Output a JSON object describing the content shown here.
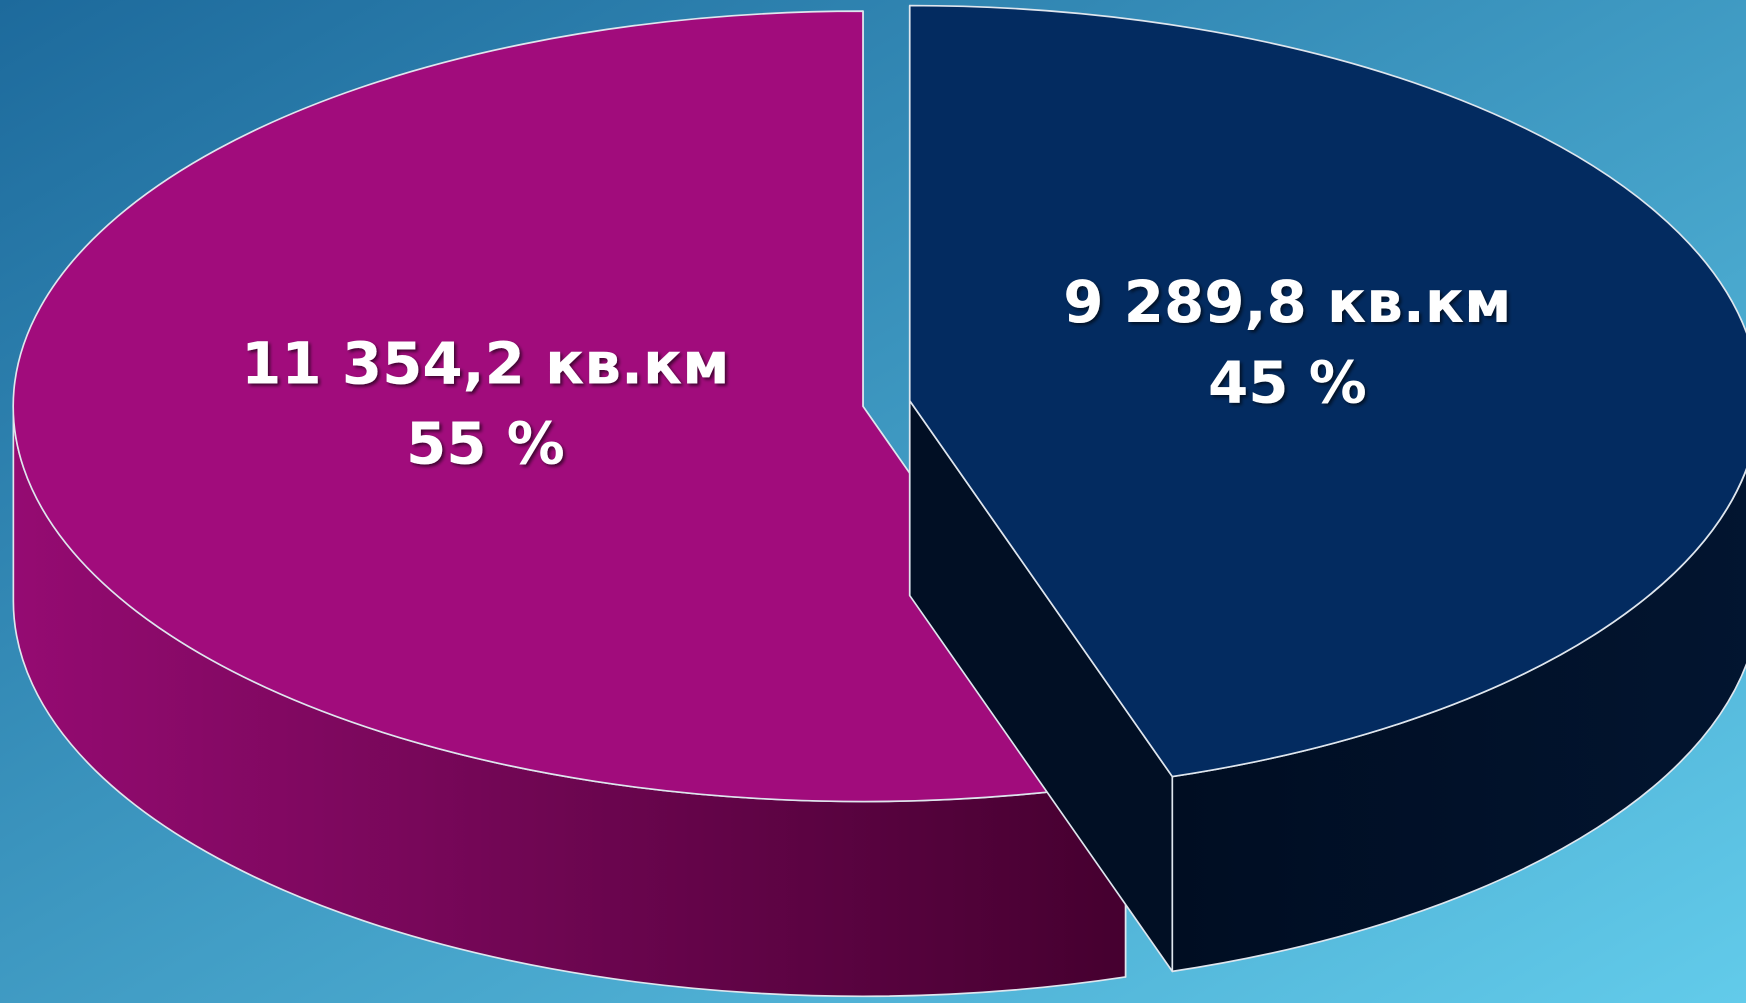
{
  "chart_data": {
    "type": "pie",
    "values": [
      11354.2,
      9289.8
    ],
    "value_labels": [
      "11 354,2 кв.км",
      "9 289,8 кв.км"
    ],
    "percents": [
      55,
      45
    ],
    "percent_labels": [
      "55 %",
      "45 %"
    ],
    "colors": [
      "#a10c7c",
      "#032b60"
    ]
  }
}
